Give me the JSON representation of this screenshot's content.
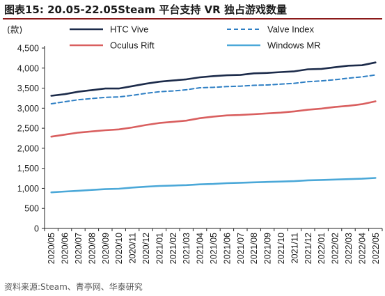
{
  "title": "图表15:   20.05-22.05Steam 平台支持 VR 独占游戏数量",
  "source": "资料来源:Steam、青亭网、华泰研究",
  "chart_data": {
    "type": "line",
    "unit": "(款)",
    "ylim": [
      0,
      4500
    ],
    "yticks": [
      "0",
      "500",
      "1,000",
      "1,500",
      "2,000",
      "2,500",
      "3,000",
      "3,500",
      "4,000",
      "4,500"
    ],
    "categories": [
      "2020/05",
      "2020/06",
      "2020/07",
      "2020/08",
      "2020/09",
      "2020/10",
      "2020/11",
      "2020/12",
      "2021/01",
      "2021/02",
      "2021/03",
      "2021/04",
      "2021/05",
      "2021/06",
      "2021/07",
      "2021/08",
      "2021/09",
      "2021/10",
      "2021/11",
      "2021/12",
      "2022/01",
      "2022/02",
      "2022/03",
      "2022/04",
      "2022/05"
    ],
    "legend_position": "top",
    "grid": false,
    "series": [
      {
        "name": "HTC Vive",
        "color": "#1c2b4a",
        "dash": false,
        "values": [
          3310,
          3350,
          3410,
          3450,
          3490,
          3490,
          3550,
          3610,
          3660,
          3690,
          3720,
          3770,
          3800,
          3820,
          3830,
          3870,
          3880,
          3900,
          3920,
          3970,
          3980,
          4020,
          4060,
          4070,
          4140
        ]
      },
      {
        "name": "Valve Index",
        "color": "#2e7fc4",
        "dash": true,
        "values": [
          3110,
          3160,
          3210,
          3240,
          3270,
          3280,
          3320,
          3370,
          3410,
          3430,
          3460,
          3510,
          3520,
          3540,
          3550,
          3570,
          3580,
          3600,
          3620,
          3660,
          3680,
          3710,
          3750,
          3780,
          3830
        ]
      },
      {
        "name": "Oculus Rift",
        "color": "#d95f5f",
        "dash": false,
        "values": [
          2290,
          2340,
          2390,
          2420,
          2450,
          2470,
          2520,
          2580,
          2630,
          2660,
          2690,
          2750,
          2790,
          2820,
          2830,
          2850,
          2870,
          2890,
          2920,
          2960,
          2990,
          3030,
          3060,
          3100,
          3170
        ]
      },
      {
        "name": "Windows MR",
        "color": "#4ba8d8",
        "dash": false,
        "values": [
          900,
          920,
          940,
          960,
          980,
          990,
          1020,
          1040,
          1060,
          1070,
          1080,
          1100,
          1110,
          1130,
          1140,
          1150,
          1160,
          1170,
          1180,
          1200,
          1210,
          1220,
          1230,
          1240,
          1260
        ]
      }
    ]
  }
}
